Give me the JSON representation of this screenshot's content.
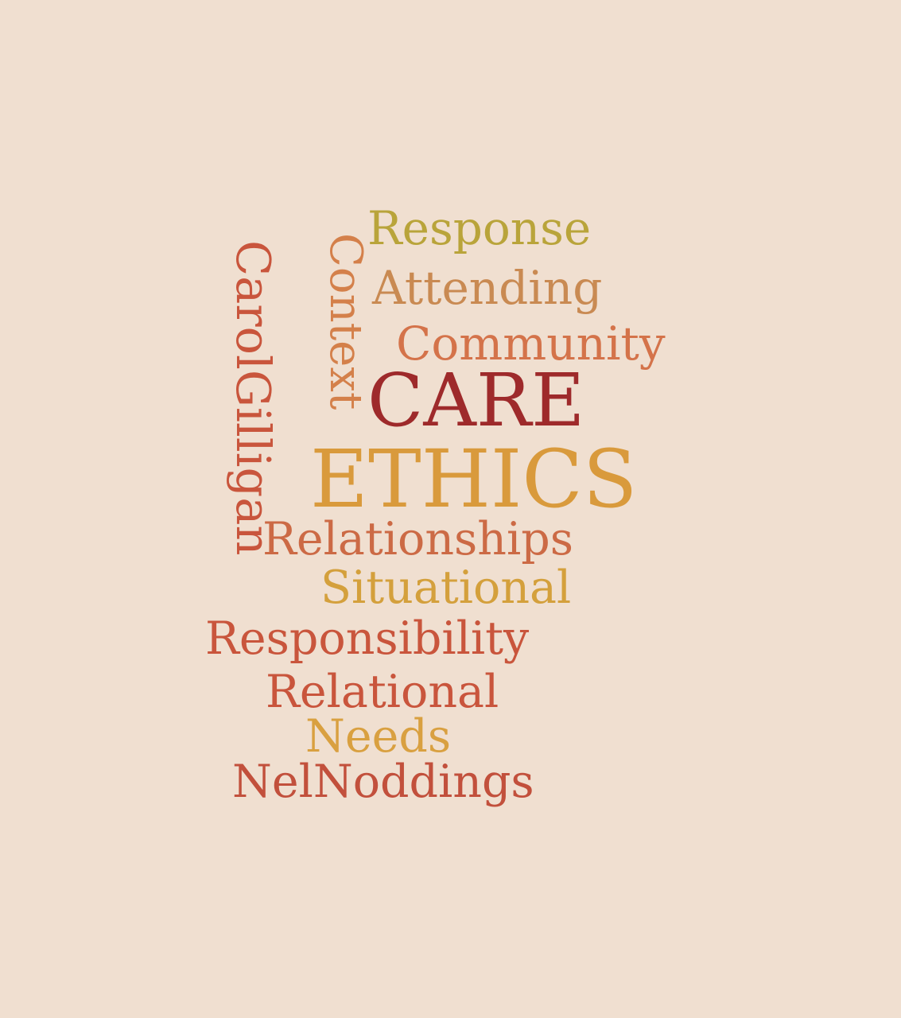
{
  "word_cloud": {
    "background": "#f0dfd0",
    "words": {
      "response": {
        "text": "Response",
        "color": "#b9a43a"
      },
      "attending": {
        "text": "Attending",
        "color": "#c98a52"
      },
      "community": {
        "text": "Community",
        "color": "#d4734a"
      },
      "care": {
        "text": "CARE",
        "color": "#9e2a2b"
      },
      "ethics": {
        "text": "ETHICS",
        "color": "#d99a3c"
      },
      "relationships": {
        "text": "Relationships",
        "color": "#cc6a45"
      },
      "situational": {
        "text": "Situational",
        "color": "#d4a03c"
      },
      "responsibility": {
        "text": "Responsibility",
        "color": "#c9553c"
      },
      "relational": {
        "text": "Relational",
        "color": "#c9553c"
      },
      "needs": {
        "text": "Needs",
        "color": "#d9a040"
      },
      "nelnoddings": {
        "text": "NelNoddings",
        "color": "#c2503c"
      },
      "context": {
        "text": "Context",
        "color": "#d4804a"
      },
      "carolgilligan": {
        "text": "CarolGilligan",
        "color": "#c9553c"
      }
    }
  }
}
